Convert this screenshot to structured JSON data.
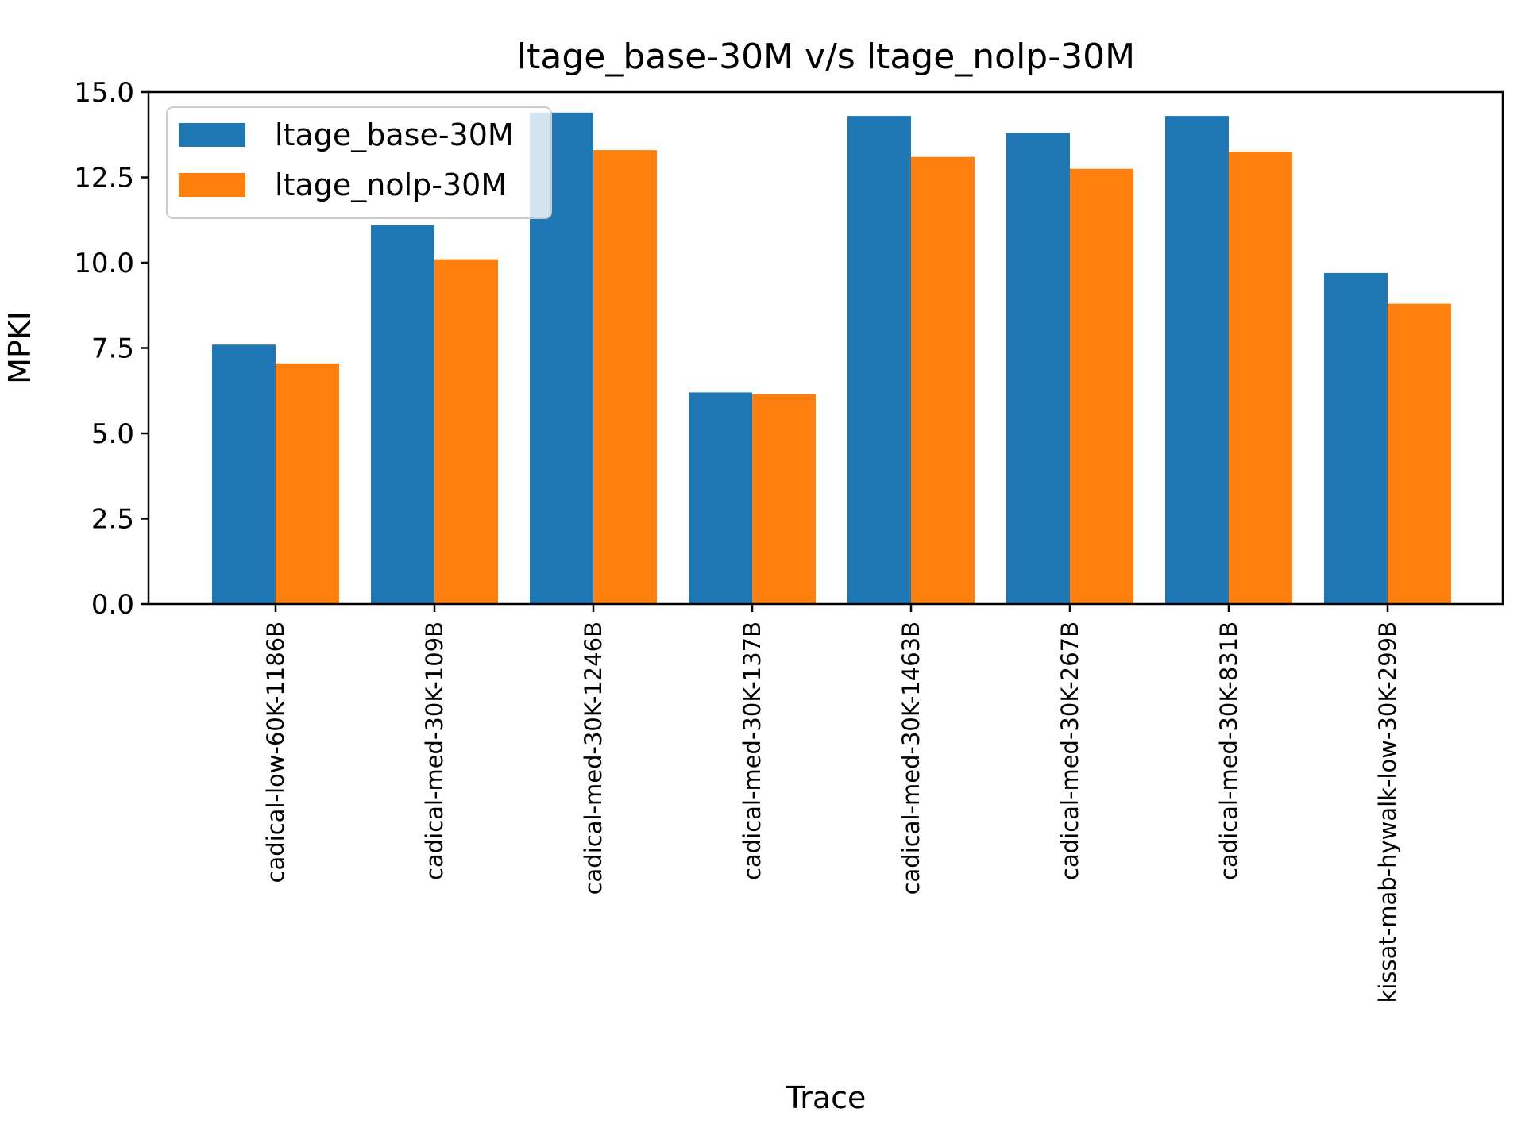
{
  "chart_data": {
    "type": "bar",
    "title": "ltage_base-30M v/s ltage_nolp-30M",
    "xlabel": "Trace",
    "ylabel": "MPKI",
    "ylim": [
      0,
      15
    ],
    "yticks": [
      "0.0",
      "2.5",
      "5.0",
      "7.5",
      "10.0",
      "12.5",
      "15.0"
    ],
    "categories": [
      "cadical-low-60K-1186B",
      "cadical-med-30K-109B",
      "cadical-med-30K-1246B",
      "cadical-med-30K-137B",
      "cadical-med-30K-1463B",
      "cadical-med-30K-267B",
      "cadical-med-30K-831B",
      "kissat-mab-hywalk-low-30K-299B"
    ],
    "series": [
      {
        "name": "ltage_base-30M",
        "color": "#1f77b4",
        "values": [
          7.6,
          11.1,
          14.4,
          6.2,
          14.3,
          13.8,
          14.3,
          9.7
        ]
      },
      {
        "name": "ltage_nolp-30M",
        "color": "#ff7f0e",
        "values": [
          7.05,
          10.1,
          13.3,
          6.15,
          13.1,
          12.75,
          13.25,
          8.8
        ]
      }
    ],
    "grid": false,
    "legend": "top-left"
  }
}
